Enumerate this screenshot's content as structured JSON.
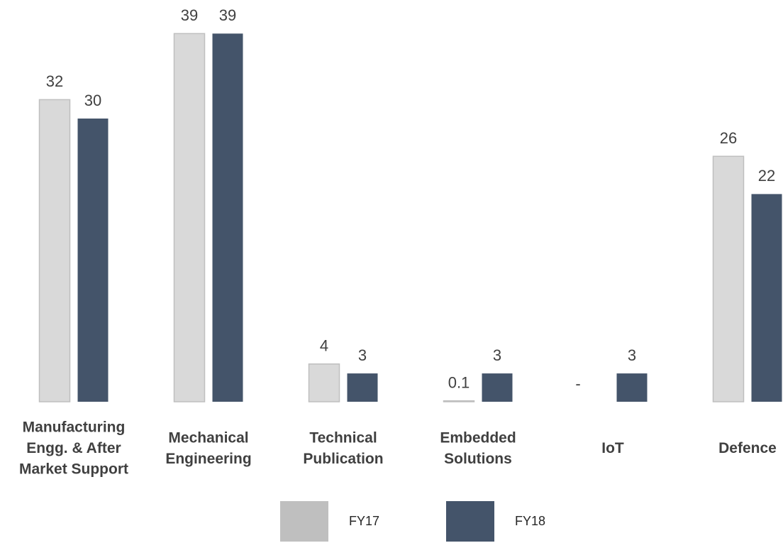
{
  "chart_data": {
    "type": "bar",
    "categories": [
      "Manufacturing\nEngg. & After\nMarket Support",
      "Mechanical\nEngineering",
      "Technical\nPublication",
      "Embedded\nSolutions",
      "IoT",
      "Defence"
    ],
    "series": [
      {
        "name": "FY17",
        "color": "#d9d9d9",
        "values": [
          32,
          39,
          4,
          0.1,
          null,
          26
        ],
        "value_labels": [
          "32",
          "39",
          "4",
          "0.1",
          "-",
          "26"
        ]
      },
      {
        "name": "FY18",
        "color": "#44546a",
        "values": [
          30,
          39,
          3,
          3,
          3,
          22
        ]
      }
    ],
    "ylim": [
      0,
      40
    ]
  }
}
